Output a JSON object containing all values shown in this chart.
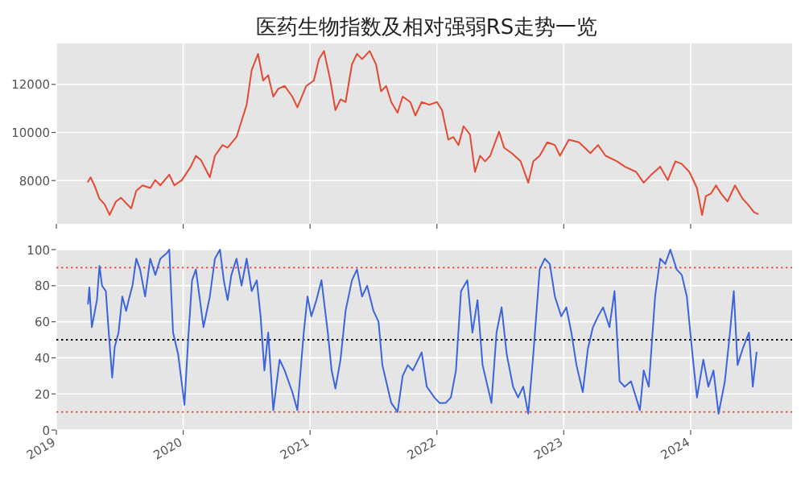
{
  "chart_data": [
    {
      "type": "line",
      "title": "医药生物指数及相对强弱RS走势一览",
      "xlim": [
        2019,
        2024.8
      ],
      "xticks": [
        2019,
        2020,
        2021,
        2022,
        2023,
        2024
      ],
      "ylim": [
        6200,
        13700
      ],
      "yticks": [
        8000,
        10000,
        12000
      ],
      "grid": true,
      "tick_labels": "y",
      "series": [
        {
          "color": "#e24a33",
          "x": [
            2019.25,
            2019.27,
            2019.3,
            2019.34,
            2019.38,
            2019.42,
            2019.47,
            2019.51,
            2019.55,
            2019.59,
            2019.63,
            2019.68,
            2019.74,
            2019.78,
            2019.82,
            2019.89,
            2019.93,
            2019.99,
            2020.06,
            2020.1,
            2020.14,
            2020.21,
            2020.25,
            2020.31,
            2020.35,
            2020.42,
            2020.46,
            2020.5,
            2020.54,
            2020.59,
            2020.63,
            2020.67,
            2020.71,
            2020.75,
            2020.8,
            2020.86,
            2020.9,
            2020.97,
            2021.03,
            2021.07,
            2021.11,
            2021.16,
            2021.2,
            2021.24,
            2021.28,
            2021.33,
            2021.37,
            2021.41,
            2021.47,
            2021.52,
            2021.56,
            2021.6,
            2021.64,
            2021.69,
            2021.73,
            2021.79,
            2021.83,
            2021.88,
            2021.94,
            2022.0,
            2022.04,
            2022.09,
            2022.13,
            2022.17,
            2022.21,
            2022.26,
            2022.3,
            2022.34,
            2022.38,
            2022.42,
            2022.49,
            2022.53,
            2022.59,
            2022.66,
            2022.72,
            2022.76,
            2022.81,
            2022.87,
            2022.93,
            2022.97,
            2023.04,
            2023.12,
            2023.21,
            2023.27,
            2023.33,
            2023.42,
            2023.48,
            2023.57,
            2023.63,
            2023.69,
            2023.76,
            2023.82,
            2023.88,
            2023.93,
            2023.99,
            2024.05,
            2024.09,
            2024.12,
            2024.16,
            2024.2,
            2024.24,
            2024.29,
            2024.35,
            2024.41,
            2024.45,
            2024.5,
            2024.53
          ],
          "values": [
            7955,
            8135,
            7800,
            7240,
            7015,
            6570,
            7130,
            7285,
            7060,
            6840,
            7575,
            7800,
            7690,
            8020,
            7800,
            8245,
            7800,
            8020,
            8580,
            9030,
            8850,
            8135,
            9030,
            9475,
            9365,
            9810,
            10480,
            11150,
            12600,
            13270,
            12160,
            12380,
            11490,
            11820,
            11935,
            11490,
            11040,
            11935,
            12160,
            13050,
            13385,
            12160,
            10930,
            11375,
            11265,
            12830,
            13270,
            13050,
            13385,
            12830,
            11710,
            11935,
            11265,
            10820,
            11490,
            11265,
            10705,
            11265,
            11150,
            11265,
            10930,
            9700,
            9810,
            9475,
            10260,
            9920,
            8360,
            9030,
            8800,
            9030,
            10035,
            9365,
            9140,
            8800,
            7910,
            8800,
            9030,
            9590,
            9475,
            9030,
            9700,
            9590,
            9140,
            9475,
            9030,
            8800,
            8580,
            8360,
            7910,
            8245,
            8580,
            8020,
            8800,
            8690,
            8360,
            7690,
            6570,
            7350,
            7460,
            7800,
            7460,
            7130,
            7800,
            7240,
            7015,
            6680,
            6615
          ]
        }
      ]
    },
    {
      "type": "line",
      "xlim": [
        2019,
        2024.8
      ],
      "xticks": [
        2019,
        2020,
        2021,
        2022,
        2023,
        2024
      ],
      "ylim": [
        0,
        100
      ],
      "yticks": [
        0,
        20,
        40,
        60,
        80,
        100
      ],
      "grid": true,
      "ref_lines": [
        {
          "axis": "y",
          "value": 90,
          "color": "#e24a33",
          "line_style": "dotted"
        },
        {
          "axis": "y",
          "value": 50,
          "color": "#000000",
          "line_style": "dotted"
        },
        {
          "axis": "y",
          "value": 10,
          "color": "#e24a33",
          "line_style": "dotted"
        }
      ],
      "series": [
        {
          "color": "#3c64dc",
          "x": [
            2019.25,
            2019.26,
            2019.28,
            2019.32,
            2019.34,
            2019.36,
            2019.39,
            2019.41,
            2019.44,
            2019.46,
            2019.49,
            2019.52,
            2019.55,
            2019.57,
            2019.6,
            2019.63,
            2019.66,
            2019.7,
            2019.74,
            2019.78,
            2019.82,
            2019.87,
            2019.89,
            2019.92,
            2019.96,
            2020.01,
            2020.04,
            2020.07,
            2020.1,
            2020.16,
            2020.21,
            2020.25,
            2020.29,
            2020.32,
            2020.35,
            2020.38,
            2020.42,
            2020.46,
            2020.5,
            2020.54,
            2020.58,
            2020.61,
            2020.64,
            2020.67,
            2020.71,
            2020.76,
            2020.8,
            2020.86,
            2020.9,
            2020.95,
            2020.98,
            2021.01,
            2021.05,
            2021.09,
            2021.14,
            2021.17,
            2021.2,
            2021.24,
            2021.28,
            2021.33,
            2021.37,
            2021.41,
            2021.45,
            2021.5,
            2021.54,
            2021.57,
            2021.6,
            2021.64,
            2021.69,
            2021.73,
            2021.77,
            2021.81,
            2021.88,
            2021.92,
            2021.98,
            2022.02,
            2022.07,
            2022.11,
            2022.15,
            2022.19,
            2022.24,
            2022.28,
            2022.32,
            2022.36,
            2022.43,
            2022.47,
            2022.51,
            2022.55,
            2022.6,
            2022.64,
            2022.68,
            2022.72,
            2022.76,
            2022.81,
            2022.85,
            2022.89,
            2022.93,
            2022.98,
            2023.02,
            2023.06,
            2023.1,
            2023.15,
            2023.19,
            2023.23,
            2023.27,
            2023.31,
            2023.36,
            2023.4,
            2023.44,
            2023.48,
            2023.53,
            2023.57,
            2023.6,
            2023.63,
            2023.67,
            2023.72,
            2023.76,
            2023.8,
            2023.84,
            2023.89,
            2023.93,
            2023.97,
            2024.01,
            2024.05,
            2024.1,
            2024.14,
            2024.18,
            2024.22,
            2024.27,
            2024.31,
            2024.34,
            2024.37,
            2024.41,
            2024.46,
            2024.49,
            2024.52
          ],
          "values": [
            70,
            79,
            57,
            72,
            91,
            80,
            77,
            57,
            29,
            46,
            54,
            74,
            66,
            72,
            80,
            95,
            89,
            74,
            95,
            86,
            95,
            98,
            100,
            54,
            42,
            14,
            51,
            83,
            89,
            57,
            74,
            95,
            100,
            83,
            72,
            86,
            95,
            80,
            95,
            77,
            83,
            63,
            33,
            54,
            11,
            39,
            33,
            21,
            11,
            54,
            74,
            63,
            72,
            83,
            54,
            33,
            23,
            39,
            66,
            83,
            89,
            74,
            80,
            66,
            60,
            36,
            27,
            15,
            10,
            30,
            36,
            33,
            43,
            24,
            18,
            15,
            15,
            18,
            33,
            77,
            83,
            54,
            72,
            36,
            15,
            54,
            68,
            42,
            24,
            18,
            24,
            9,
            42,
            89,
            95,
            92,
            74,
            63,
            68,
            54,
            36,
            21,
            45,
            57,
            63,
            68,
            57,
            77,
            27,
            24,
            27,
            18,
            11,
            33,
            24,
            74,
            95,
            92,
            100,
            89,
            86,
            74,
            45,
            18,
            39,
            24,
            33,
            9,
            27,
            54,
            77,
            36,
            45,
            54,
            24,
            43
          ]
        }
      ]
    }
  ]
}
